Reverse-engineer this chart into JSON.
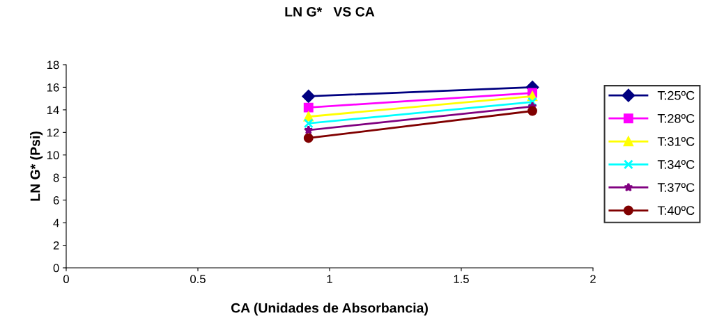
{
  "chart_data": {
    "type": "line",
    "title": "LN G*   VS CA",
    "xlabel": "CA (Unidades de Absorbancia)",
    "ylabel": "LN G* (Psi)",
    "x": [
      0.92,
      1.77
    ],
    "xlim": [
      0,
      2
    ],
    "xticks": [
      0,
      0.5,
      1,
      1.5,
      2
    ],
    "ylim": [
      0,
      18
    ],
    "yticks": [
      0,
      2,
      4,
      6,
      8,
      10,
      12,
      14,
      16,
      18
    ],
    "grid": false,
    "legend": "right",
    "line_style": "solid",
    "series": [
      {
        "name": "T:25ºC",
        "color": "#000080",
        "marker": "diamond",
        "values": [
          15.2,
          16.0
        ]
      },
      {
        "name": "T:28ºC",
        "color": "#ff00ff",
        "marker": "square",
        "values": [
          14.2,
          15.5
        ]
      },
      {
        "name": "T:31ºC",
        "color": "#ffff00",
        "marker": "triangle",
        "values": [
          13.4,
          15.2
        ]
      },
      {
        "name": "T:34ºC",
        "color": "#00ffff",
        "marker": "cross",
        "values": [
          12.8,
          14.7
        ]
      },
      {
        "name": "T:37ºC",
        "color": "#800080",
        "marker": "star",
        "values": [
          12.2,
          14.3
        ]
      },
      {
        "name": "T:40ºC",
        "color": "#800000",
        "marker": "circle",
        "values": [
          11.5,
          13.9
        ]
      }
    ]
  }
}
